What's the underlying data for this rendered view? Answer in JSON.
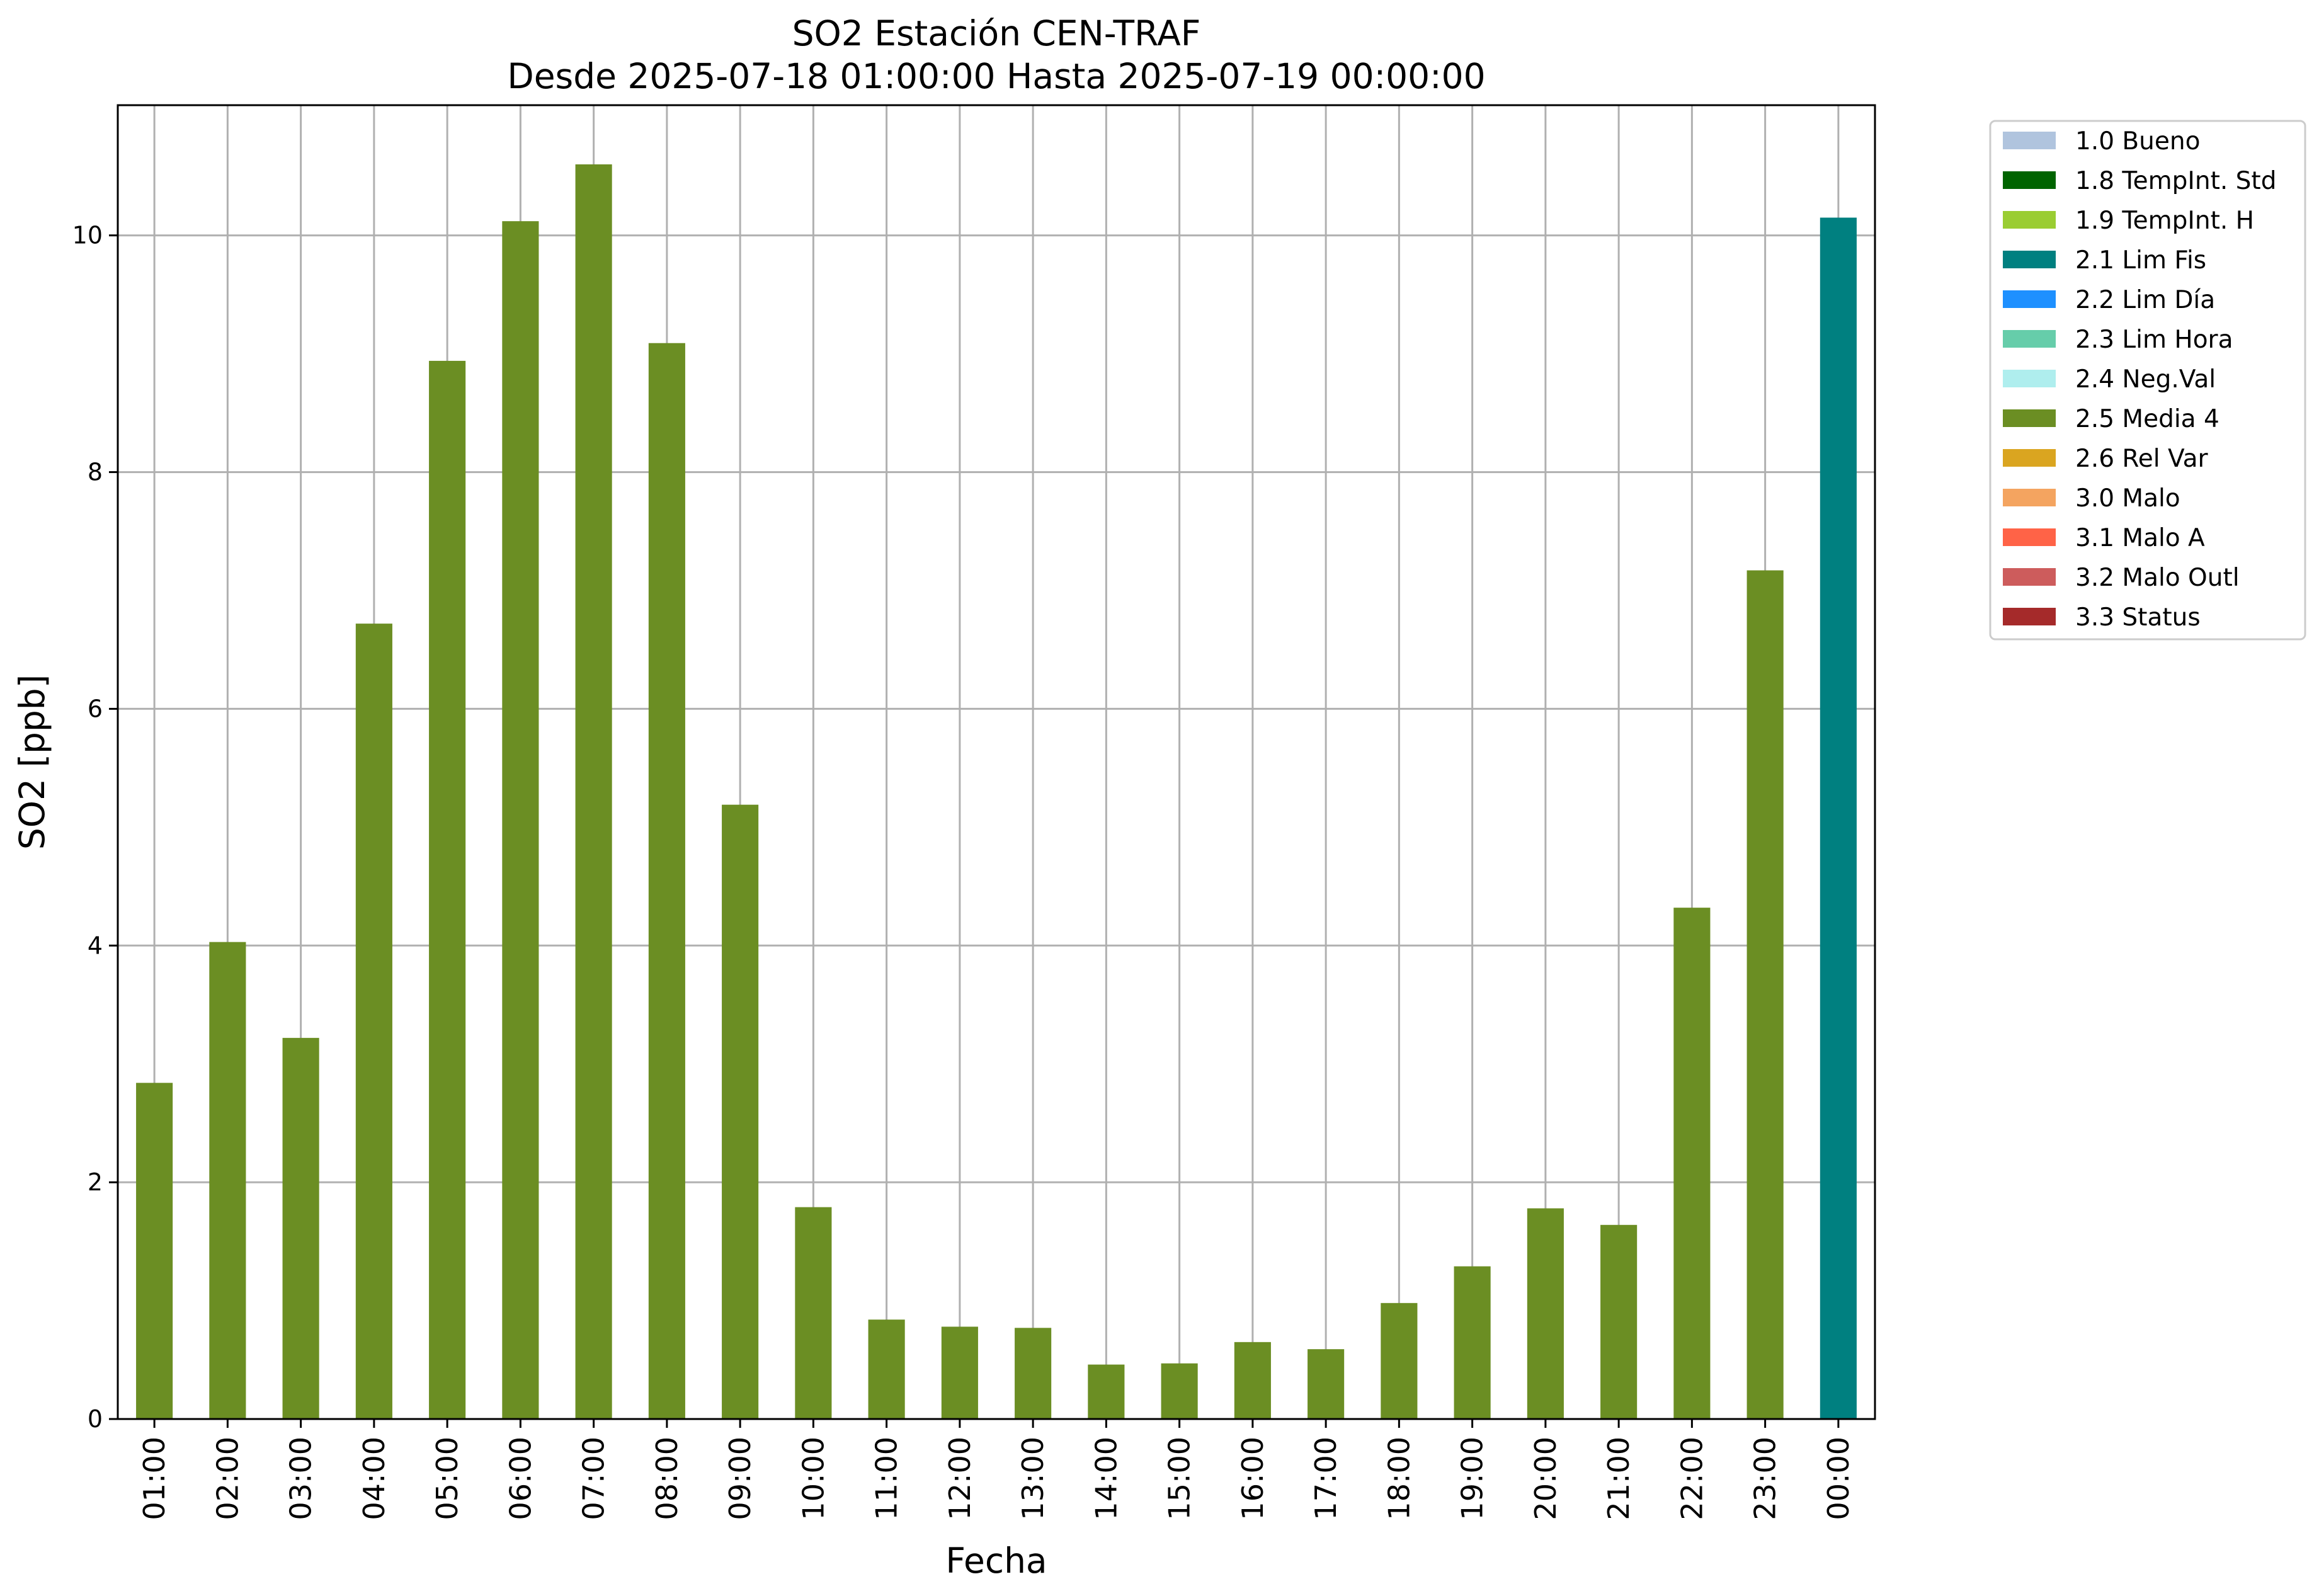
{
  "chart_data": {
    "type": "bar",
    "title": "SO2 Estación CEN-TRAF",
    "subtitle": "Desde 2025-07-18 01:00:00 Hasta 2025-07-19 00:00:00",
    "xlabel": "Fecha",
    "ylabel": "SO2 [ppb]",
    "ylim": [
      0,
      11.1
    ],
    "yticks": [
      "0",
      "2",
      "4",
      "6",
      "8",
      "10"
    ],
    "grid": true,
    "legend_position": "outside-top-right",
    "categories": [
      "01:00",
      "02:00",
      "03:00",
      "04:00",
      "05:00",
      "06:00",
      "07:00",
      "08:00",
      "09:00",
      "10:00",
      "11:00",
      "12:00",
      "13:00",
      "14:00",
      "15:00",
      "16:00",
      "17:00",
      "18:00",
      "19:00",
      "20:00",
      "21:00",
      "22:00",
      "23:00",
      "00:00"
    ],
    "values": [
      2.84,
      4.03,
      3.22,
      6.72,
      8.94,
      10.12,
      10.6,
      9.09,
      5.19,
      1.79,
      0.84,
      0.78,
      0.77,
      0.46,
      0.47,
      0.65,
      0.59,
      0.98,
      1.29,
      1.78,
      1.64,
      4.32,
      7.17,
      10.15
    ],
    "flags": [
      "2.5 Media 4",
      "2.5 Media 4",
      "2.5 Media 4",
      "2.5 Media 4",
      "2.5 Media 4",
      "2.5 Media 4",
      "2.5 Media 4",
      "2.5 Media 4",
      "2.5 Media 4",
      "2.5 Media 4",
      "2.5 Media 4",
      "2.5 Media 4",
      "2.5 Media 4",
      "2.5 Media 4",
      "2.5 Media 4",
      "2.5 Media 4",
      "2.5 Media 4",
      "2.5 Media 4",
      "2.5 Media 4",
      "2.5 Media 4",
      "2.5 Media 4",
      "2.5 Media 4",
      "2.5 Media 4",
      "2.1 Lim Fis"
    ],
    "legend": [
      {
        "label": "1.0 Bueno",
        "color": "#b0c4de"
      },
      {
        "label": "1.8 TempInt. Std",
        "color": "#006400"
      },
      {
        "label": "1.9 TempInt. H",
        "color": "#9acd32"
      },
      {
        "label": "2.1 Lim Fis",
        "color": "#008080"
      },
      {
        "label": "2.2 Lim Día",
        "color": "#1e90ff"
      },
      {
        "label": "2.3 Lim Hora",
        "color": "#66cdaa"
      },
      {
        "label": "2.4 Neg.Val",
        "color": "#afeeee"
      },
      {
        "label": "2.5 Media 4",
        "color": "#6b8e23"
      },
      {
        "label": "2.6 Rel Var",
        "color": "#daa520"
      },
      {
        "label": "3.0 Malo",
        "color": "#f4a460"
      },
      {
        "label": "3.1 Malo A",
        "color": "#ff6347"
      },
      {
        "label": "3.2 Malo Outl",
        "color": "#cd5c5c"
      },
      {
        "label": "3.3 Status",
        "color": "#a52a2a"
      }
    ]
  }
}
